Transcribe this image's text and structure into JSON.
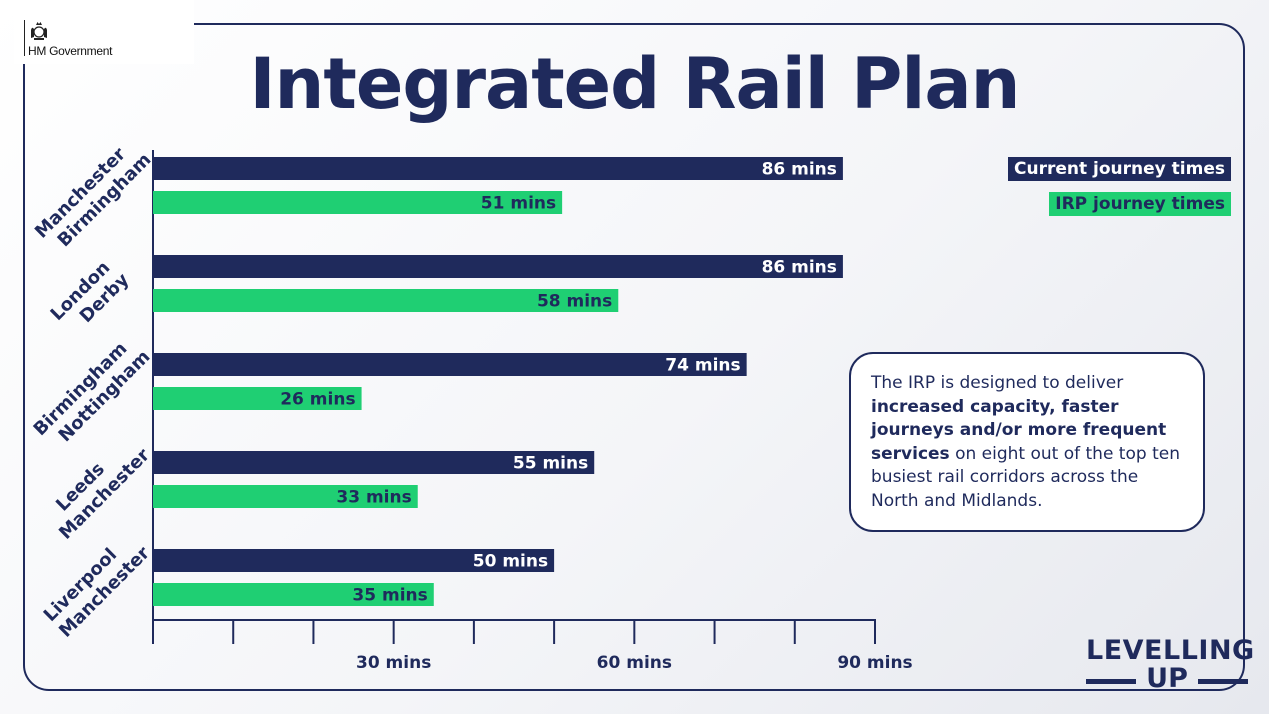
{
  "header": {
    "org": "HM Government",
    "title": "Integrated Rail Plan"
  },
  "chart_data": {
    "type": "bar",
    "orientation": "horizontal",
    "categories": [
      "Manchester Birmingham",
      "London Derby",
      "Birmingham Nottingham",
      "Leeds Manchester",
      "Liverpool Manchester"
    ],
    "category_lines": [
      [
        "Manchester",
        "Birmingham"
      ],
      [
        "London",
        "Derby"
      ],
      [
        "Birmingham",
        "Nottingham"
      ],
      [
        "Leeds",
        "Manchester"
      ],
      [
        "Liverpool",
        "Manchester"
      ]
    ],
    "series": [
      {
        "name": "Current journey times",
        "values": [
          86,
          86,
          74,
          55,
          50
        ],
        "labels": [
          "86 mins",
          "86 mins",
          "74 mins",
          "55 mins",
          "50 mins"
        ],
        "color": "#1f2a5c",
        "label_color": "#ffffff"
      },
      {
        "name": "IRP journey times",
        "values": [
          51,
          58,
          26,
          33,
          35
        ],
        "labels": [
          "51 mins",
          "58 mins",
          "26 mins",
          "33 mins",
          "35 mins"
        ],
        "color": "#1fcf73",
        "label_color": "#1f2a5c"
      }
    ],
    "xlim": [
      0,
      90
    ],
    "x_ticks": [
      0,
      10,
      20,
      30,
      40,
      50,
      60,
      70,
      80,
      90
    ],
    "x_tick_labels": [
      {
        "value": 30,
        "label": "30 mins"
      },
      {
        "value": 60,
        "label": "60 mins"
      },
      {
        "value": 90,
        "label": "90 mins"
      }
    ],
    "legend_position": "top-right"
  },
  "legend": {
    "current": "Current journey times",
    "irp": "IRP journey times"
  },
  "infobox": {
    "part1": "The IRP is designed to deliver ",
    "bold": "increased capacity, faster journeys and/or more frequent services",
    "part2": " on eight out of the top ten busiest rail corridors across the North and Midlands."
  },
  "brand": {
    "line1": "LEVELLING",
    "line2": "UP"
  },
  "colors": {
    "navy": "#1f2a5c",
    "green": "#1fcf73"
  },
  "icons": {
    "crest": "royal-crest-icon"
  }
}
